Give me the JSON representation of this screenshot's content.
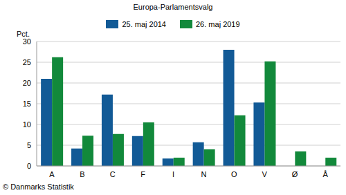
{
  "chart_data": {
    "type": "bar",
    "title": "Europa-Parlamentsvalg",
    "y_label": "Pct.",
    "source": "© Danmarks Statistik",
    "categories": [
      "A",
      "B",
      "C",
      "F",
      "I",
      "N",
      "O",
      "V",
      "Ø",
      "Å"
    ],
    "series": [
      {
        "name": "25. maj 2014",
        "color": "#125a96",
        "values": [
          21.0,
          4.2,
          17.2,
          7.2,
          1.8,
          5.7,
          28.0,
          15.3,
          null,
          null
        ]
      },
      {
        "name": "26. maj 2019",
        "color": "#12893b",
        "values": [
          26.2,
          7.3,
          7.7,
          10.5,
          2.0,
          4.0,
          12.2,
          25.2,
          3.5,
          2.0
        ]
      }
    ],
    "ylim": [
      0,
      30
    ],
    "yticks": [
      0,
      5,
      10,
      15,
      20,
      25,
      30
    ],
    "grid": true,
    "legend": "top"
  }
}
